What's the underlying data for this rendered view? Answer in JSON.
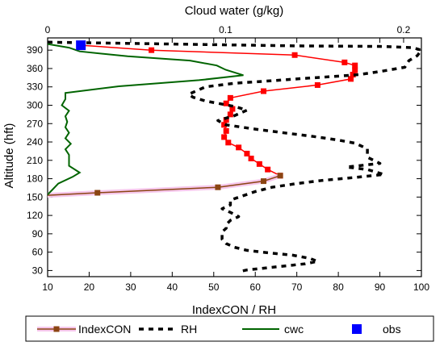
{
  "chart_data": {
    "type": "line",
    "title": "Cloud water (g/kg)",
    "xlabel": "IndexCON / RH",
    "ylabel": "Altitude (hft)",
    "xlim": [
      10,
      100
    ],
    "ylim": [
      20,
      410
    ],
    "x_ticks": [
      "10",
      "20",
      "30",
      "40",
      "50",
      "60",
      "70",
      "80",
      "90",
      "100"
    ],
    "x_tick_values": [
      10,
      20,
      30,
      40,
      50,
      60,
      70,
      80,
      90,
      100
    ],
    "y_ticks": [
      "30",
      "60",
      "90",
      "120",
      "150",
      "180",
      "210",
      "240",
      "270",
      "300",
      "330",
      "360",
      "390"
    ],
    "y_tick_values": [
      30,
      60,
      90,
      120,
      150,
      180,
      210,
      240,
      270,
      300,
      330,
      360,
      390
    ],
    "top_axis": {
      "label": "Cloud water (g/kg)",
      "lim": [
        0,
        0.21
      ],
      "ticks": [
        "0",
        "0.1",
        "0.2"
      ],
      "tick_values": [
        0,
        0.1,
        0.2
      ]
    },
    "grid": false,
    "legend_position": "bottom",
    "series": [
      {
        "name": "IndexCON",
        "axis": "bottom",
        "style": "line-square-markers",
        "segments": [
          {
            "color": "#ff0000",
            "points": [
              [
                18,
                398
              ],
              [
                35,
                390
              ],
              [
                69.5,
                382
              ],
              [
                81.5,
                370
              ],
              [
                84,
                365
              ],
              [
                84,
                357
              ],
              [
                83.5,
                350
              ],
              [
                83,
                343
              ],
              [
                75,
                333
              ],
              [
                62,
                323
              ],
              [
                54,
                312
              ],
              [
                53,
                303
              ],
              [
                54.5,
                294
              ],
              [
                54,
                285
              ],
              [
                53,
                276
              ],
              [
                52.5,
                268
              ],
              [
                53,
                258
              ],
              [
                52.5,
                248
              ],
              [
                53.5,
                239
              ],
              [
                56,
                231
              ],
              [
                58,
                221
              ],
              [
                59,
                213
              ],
              [
                61,
                204
              ],
              [
                63,
                195
              ],
              [
                66,
                185
              ]
            ]
          },
          {
            "color": "#8b4513",
            "points": [
              [
                66,
                185
              ],
              [
                62,
                176
              ],
              [
                51,
                166
              ],
              [
                22,
                157
              ],
              [
                10,
                153
              ]
            ]
          }
        ]
      },
      {
        "name": "RH",
        "axis": "bottom",
        "style": "dashed",
        "color": "#000000",
        "points": [
          [
            10,
            403
          ],
          [
            40,
            400
          ],
          [
            70,
            397
          ],
          [
            91,
            396
          ],
          [
            98,
            394
          ],
          [
            100,
            390
          ],
          [
            99,
            381
          ],
          [
            97,
            373
          ],
          [
            96,
            362
          ],
          [
            90,
            355
          ],
          [
            85,
            350
          ],
          [
            79,
            347
          ],
          [
            72,
            344
          ],
          [
            64,
            340
          ],
          [
            55,
            336
          ],
          [
            48,
            330
          ],
          [
            44,
            318
          ],
          [
            45,
            313
          ],
          [
            48,
            307
          ],
          [
            55,
            298
          ],
          [
            58,
            292
          ],
          [
            55,
            283
          ],
          [
            51,
            275
          ],
          [
            53,
            268
          ],
          [
            60,
            261
          ],
          [
            68,
            254
          ],
          [
            74,
            249
          ],
          [
            80,
            243
          ],
          [
            84,
            238
          ],
          [
            87,
            229
          ],
          [
            87,
            220
          ],
          [
            87,
            215
          ],
          [
            90,
            205
          ],
          [
            82,
            199
          ],
          [
            87,
            195
          ],
          [
            91,
            187
          ],
          [
            84,
            182
          ],
          [
            76,
            177
          ],
          [
            70,
            172
          ],
          [
            64,
            166
          ],
          [
            60,
            159
          ],
          [
            57,
            152
          ],
          [
            54,
            145
          ],
          [
            54,
            137
          ],
          [
            52,
            131
          ],
          [
            54,
            125
          ],
          [
            56,
            118
          ],
          [
            54,
            112
          ],
          [
            53,
            105
          ],
          [
            53,
            99
          ],
          [
            52,
            93
          ],
          [
            52,
            87
          ],
          [
            52,
            81
          ],
          [
            53,
            74
          ],
          [
            55,
            68
          ],
          [
            58,
            63
          ],
          [
            63,
            59
          ],
          [
            69,
            55
          ],
          [
            73,
            50
          ],
          [
            75,
            45
          ],
          [
            72,
            41
          ],
          [
            65,
            36
          ],
          [
            58,
            31
          ],
          [
            56,
            28
          ]
        ]
      },
      {
        "name": "cwc",
        "axis": "top",
        "style": "line",
        "color": "#006400",
        "points": [
          [
            0,
            400
          ],
          [
            0.012,
            394
          ],
          [
            0.018,
            388
          ],
          [
            0.045,
            380
          ],
          [
            0.08,
            373
          ],
          [
            0.095,
            365
          ],
          [
            0.1,
            358
          ],
          [
            0.11,
            349
          ],
          [
            0.085,
            341
          ],
          [
            0.04,
            331
          ],
          [
            0.01,
            320
          ],
          [
            0.01,
            310
          ],
          [
            0.008,
            300
          ],
          [
            0.012,
            291
          ],
          [
            0.01,
            282
          ],
          [
            0.011,
            273
          ],
          [
            0.01,
            264
          ],
          [
            0.012,
            255
          ],
          [
            0.01,
            246
          ],
          [
            0.013,
            237
          ],
          [
            0.01,
            228
          ],
          [
            0.012,
            219
          ],
          [
            0.012,
            210
          ],
          [
            0.012,
            201
          ],
          [
            0.018,
            190
          ],
          [
            0.014,
            183
          ],
          [
            0.006,
            172
          ],
          [
            0.003,
            163
          ],
          [
            0,
            154
          ]
        ]
      },
      {
        "name": "obs",
        "axis": "bottom",
        "style": "square-marker",
        "color": "#0000ff",
        "points": [
          [
            18,
            398
          ]
        ]
      }
    ],
    "legend": [
      {
        "label": "IndexCON",
        "style": "line-square-markers",
        "color": "#8b4513"
      },
      {
        "label": "RH",
        "style": "dashed",
        "color": "#000000"
      },
      {
        "label": "cwc",
        "style": "line",
        "color": "#006400"
      },
      {
        "label": "obs",
        "style": "square-marker",
        "color": "#0000ff"
      }
    ]
  }
}
